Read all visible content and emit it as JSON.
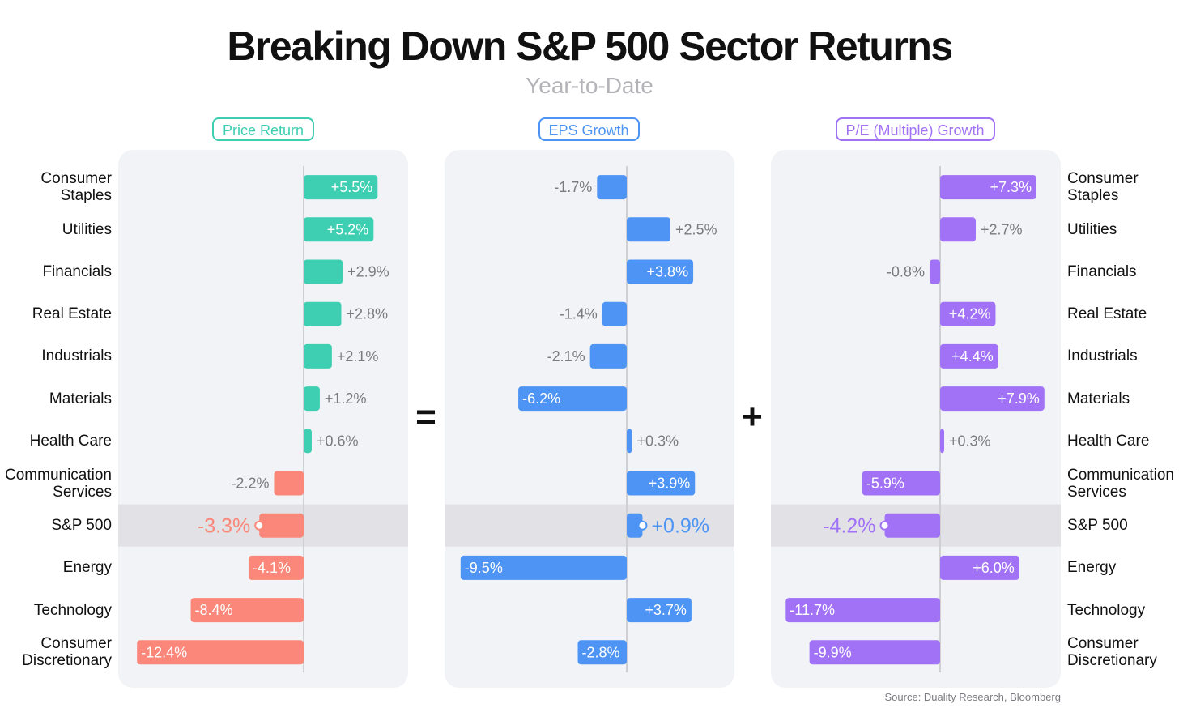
{
  "title": "Breaking Down S&P 500 Sector Returns",
  "subtitle": "Year-to-Date",
  "source": "Source: Duality Research, Bloomberg",
  "operators": [
    "=",
    "+"
  ],
  "chart_data": {
    "type": "bar",
    "orientation": "horizontal",
    "categories": [
      "Consumer Staples",
      "Utilities",
      "Financials",
      "Real Estate",
      "Industrials",
      "Materials",
      "Health Care",
      "Communication Services",
      "S&P 500",
      "Energy",
      "Technology",
      "Consumer Discretionary"
    ],
    "category_lines": [
      [
        "Consumer",
        "Staples"
      ],
      [
        "Utilities"
      ],
      [
        "Financials"
      ],
      [
        "Real Estate"
      ],
      [
        "Industrials"
      ],
      [
        "Materials"
      ],
      [
        "Health Care"
      ],
      [
        "Communication",
        "Services"
      ],
      [
        "S&P 500"
      ],
      [
        "Energy"
      ],
      [
        "Technology"
      ],
      [
        "Consumer",
        "Discretionary"
      ]
    ],
    "highlight_category": "S&P 500",
    "series": [
      {
        "name": "Price Return",
        "color": "#3ecfb2",
        "negative_color": "#fa877a",
        "values": [
          5.5,
          5.2,
          2.9,
          2.8,
          2.1,
          1.2,
          0.6,
          -2.2,
          -3.3,
          -4.1,
          -8.4,
          -12.4
        ],
        "labels": [
          "+5.5%",
          "+5.2%",
          "+2.9%",
          "+2.8%",
          "+2.1%",
          "+1.2%",
          "+0.6%",
          "-2.2%",
          "-3.3%",
          "-4.1%",
          "-8.4%",
          "-12.4%"
        ]
      },
      {
        "name": "EPS Growth",
        "color": "#4d94f4",
        "values": [
          -1.7,
          2.5,
          3.8,
          -1.4,
          -2.1,
          -6.2,
          0.3,
          3.9,
          0.9,
          -9.5,
          3.7,
          -2.8
        ],
        "labels": [
          "-1.7%",
          "+2.5%",
          "+3.8%",
          "-1.4%",
          "-2.1%",
          "-6.2%",
          "+0.3%",
          "+3.9%",
          "+0.9%",
          "-9.5%",
          "+3.7%",
          "-2.8%"
        ]
      },
      {
        "name": "P/E (Multiple) Growth",
        "color": "#a172f6",
        "values": [
          7.3,
          2.7,
          -0.8,
          4.2,
          4.4,
          7.9,
          0.3,
          -5.9,
          -4.2,
          6.0,
          -11.7,
          -9.9
        ],
        "labels": [
          "+7.3%",
          "+2.7%",
          "-0.8%",
          "+4.2%",
          "+4.4%",
          "+7.9%",
          "+0.3%",
          "-5.9%",
          "-4.2%",
          "+6.0%",
          "-11.7%",
          "-9.9%"
        ]
      }
    ],
    "grid": false
  }
}
